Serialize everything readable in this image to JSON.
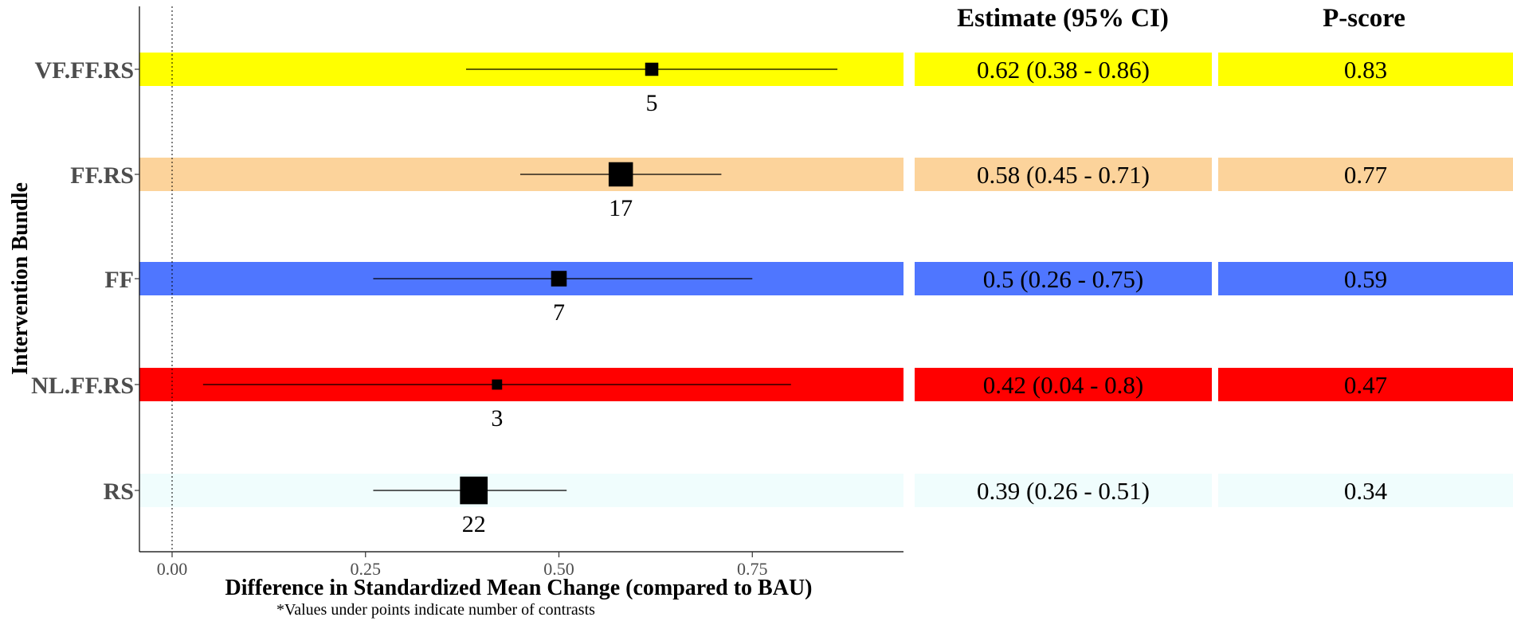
{
  "chart_data": {
    "type": "scatter",
    "subtype": "forest-plot",
    "xlabel": "Difference in Standardized Mean Change (compared to BAU)",
    "ylabel": "Intervention Bundle",
    "footnote": "*Values under points indicate number of contrasts",
    "xlim": [
      -0.08,
      0.905
    ],
    "xticks": [
      0.0,
      0.25,
      0.5,
      0.75
    ],
    "xtick_labels": [
      "0.00",
      "0.25",
      "0.50",
      "0.75"
    ],
    "reference_line": 0,
    "table_headers": [
      "Estimate (95% CI)",
      "P-score"
    ],
    "rows": [
      {
        "label": "VF.FF.RS",
        "estimate": 0.62,
        "lower": 0.38,
        "upper": 0.86,
        "n": 5,
        "n_label": "5",
        "ci_text": "0.62 (0.38 - 0.86)",
        "pscore": "0.83",
        "color": "#ffff00"
      },
      {
        "label": "FF.RS",
        "estimate": 0.58,
        "lower": 0.45,
        "upper": 0.71,
        "n": 17,
        "n_label": "17",
        "ci_text": "0.58 (0.45 - 0.71)",
        "pscore": "0.77",
        "color": "#fcd39b"
      },
      {
        "label": "FF",
        "estimate": 0.5,
        "lower": 0.26,
        "upper": 0.75,
        "n": 7,
        "n_label": "7",
        "ci_text": "0.5 (0.26 - 0.75)",
        "pscore": "0.59",
        "color": "#4f76ff"
      },
      {
        "label": "NL.FF.RS",
        "estimate": 0.42,
        "lower": 0.04,
        "upper": 0.8,
        "n": 3,
        "n_label": "3",
        "ci_text": "0.42 (0.04 - 0.8)",
        "pscore": "0.47",
        "color": "#ff0000"
      },
      {
        "label": "RS",
        "estimate": 0.39,
        "lower": 0.26,
        "upper": 0.51,
        "n": 22,
        "n_label": "22",
        "ci_text": "0.39 (0.26 - 0.51)",
        "pscore": "0.34",
        "color": "#f0fdfd"
      }
    ]
  }
}
